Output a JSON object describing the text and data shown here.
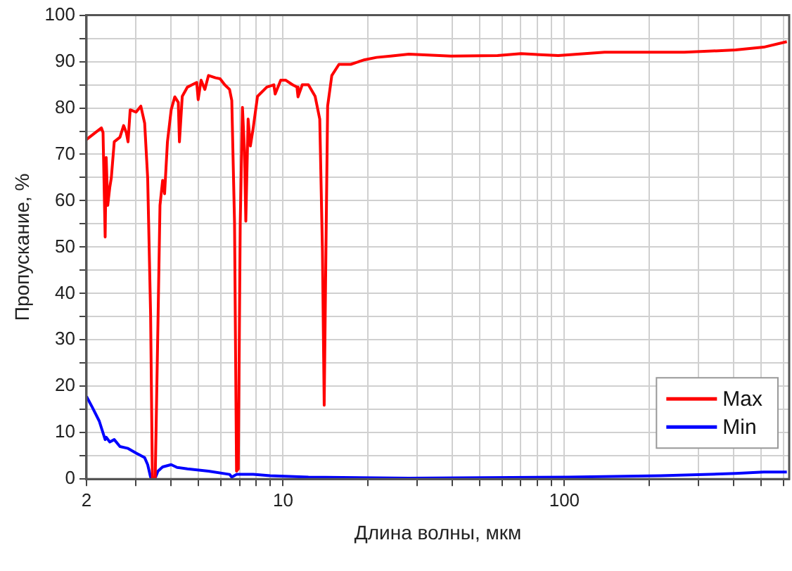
{
  "chart_data": {
    "type": "line",
    "xlabel": "Длина волны, мкм",
    "ylabel": "Пропускание, %",
    "log": "x",
    "grid": true,
    "legend": "bottom right",
    "marker": "none",
    "line_style": "solid",
    "xlim": [
      2,
      630
    ],
    "ylim": [
      0,
      100
    ],
    "xticks": [
      2,
      {
        "value": 3,
        "label": null
      },
      {
        "value": 4,
        "label": null
      },
      {
        "value": 5,
        "label": null
      },
      {
        "value": 6,
        "label": null
      },
      {
        "value": 7,
        "label": null
      },
      {
        "value": 8,
        "label": null
      },
      {
        "value": 9,
        "label": null
      },
      10,
      {
        "value": 20,
        "label": null
      },
      {
        "value": 30,
        "label": null
      },
      {
        "value": 40,
        "label": null
      },
      {
        "value": 50,
        "label": null
      },
      {
        "value": 60,
        "label": null
      },
      {
        "value": 70,
        "label": null
      },
      {
        "value": 80,
        "label": null
      },
      {
        "value": 90,
        "label": null
      },
      100,
      {
        "value": 200,
        "label": null
      },
      {
        "value": 300,
        "label": null
      },
      {
        "value": 400,
        "label": null
      },
      {
        "value": 500,
        "label": null
      },
      {
        "value": 600,
        "label": null
      }
    ],
    "yticks": [
      0,
      {
        "value": 5,
        "label": null
      },
      10,
      {
        "value": 15,
        "label": null
      },
      20,
      {
        "value": 25,
        "label": null
      },
      30,
      {
        "value": 35,
        "label": null
      },
      40,
      {
        "value": 45,
        "label": null
      },
      50,
      {
        "value": 55,
        "label": null
      },
      60,
      {
        "value": 65,
        "label": null
      },
      70,
      {
        "value": 75,
        "label": null
      },
      80,
      {
        "value": 85,
        "label": null
      },
      90,
      {
        "value": 95,
        "label": null
      },
      100
    ],
    "series": [
      {
        "name": "Max",
        "color": "#ff0000",
        "x": [
          2,
          2.26,
          2.29,
          2.33,
          2.35,
          2.38,
          2.42,
          2.45,
          2.51,
          2.63,
          2.71,
          2.77,
          2.81,
          2.86,
          3.0,
          3.12,
          3.22,
          3.3,
          3.38,
          3.43,
          3.51,
          3.59,
          3.65,
          3.73,
          3.79,
          3.88,
          4.0,
          4.12,
          4.24,
          4.28,
          4.38,
          4.57,
          4.75,
          4.93,
          4.99,
          5.11,
          5.27,
          5.43,
          5.75,
          5.97,
          6.2,
          6.45,
          6.57,
          6.72,
          6.83,
          6.93,
          7.04,
          7.17,
          7.29,
          7.37,
          7.51,
          7.65,
          7.83,
          8.11,
          8.75,
          9.27,
          9.37,
          9.81,
          10.2,
          10.8,
          11.2,
          11.3,
          11.7,
          12.3,
          13.0,
          13.5,
          13.8,
          14.0,
          14.2,
          14.4,
          14.9,
          15.8,
          17.4,
          19.5,
          21.5,
          24.1,
          28.0,
          39.5,
          57.9,
          70.1,
          95.1,
          139,
          267,
          406,
          511,
          618
        ],
        "values": [
          73.2,
          75.7,
          74.7,
          52.2,
          69.3,
          59,
          62.9,
          64.9,
          72.7,
          73.7,
          76.2,
          74.7,
          72.7,
          79.6,
          79.1,
          80.4,
          76.7,
          64.9,
          35.5,
          0.2,
          0.2,
          33.5,
          59,
          64.4,
          61.5,
          72.7,
          79.6,
          82.4,
          81.2,
          72.7,
          82.5,
          84.5,
          85,
          85.5,
          81.8,
          86,
          84,
          87,
          86.5,
          86.3,
          85,
          84,
          81.6,
          55.1,
          1.7,
          2.2,
          55.1,
          80.1,
          70.8,
          55.6,
          77.6,
          71.8,
          75.7,
          82.5,
          84.5,
          85,
          83,
          86,
          86,
          85,
          84.5,
          82.4,
          85,
          85,
          82.5,
          77.6,
          49.2,
          15.9,
          49.2,
          80.4,
          87,
          89.4,
          89.4,
          90.4,
          90.9,
          91.2,
          91.6,
          91.2,
          91.3,
          91.7,
          91.3,
          92,
          92,
          92.5,
          93.1,
          94.3
        ]
      },
      {
        "name": "Min",
        "color": "#0000ff",
        "x": [
          2,
          2.1,
          2.22,
          2.33,
          2.35,
          2.42,
          2.51,
          2.63,
          2.81,
          3.0,
          3.22,
          3.3,
          3.38,
          3.51,
          3.59,
          3.73,
          4.0,
          4.2,
          4.57,
          5.43,
          6.45,
          6.57,
          6.83,
          7.83,
          9.0,
          12.3,
          28.0,
          103,
          220,
          406,
          511,
          618
        ],
        "values": [
          17.8,
          15.4,
          12.5,
          8.5,
          9,
          8,
          8.5,
          7,
          6.6,
          5.6,
          4.6,
          3.1,
          0.4,
          0.2,
          1.7,
          2.6,
          3.1,
          2.5,
          2.2,
          1.7,
          1,
          0.4,
          1,
          1,
          0.7,
          0.4,
          0.2,
          0.4,
          0.7,
          1.2,
          1.5,
          1.5
        ]
      }
    ]
  }
}
